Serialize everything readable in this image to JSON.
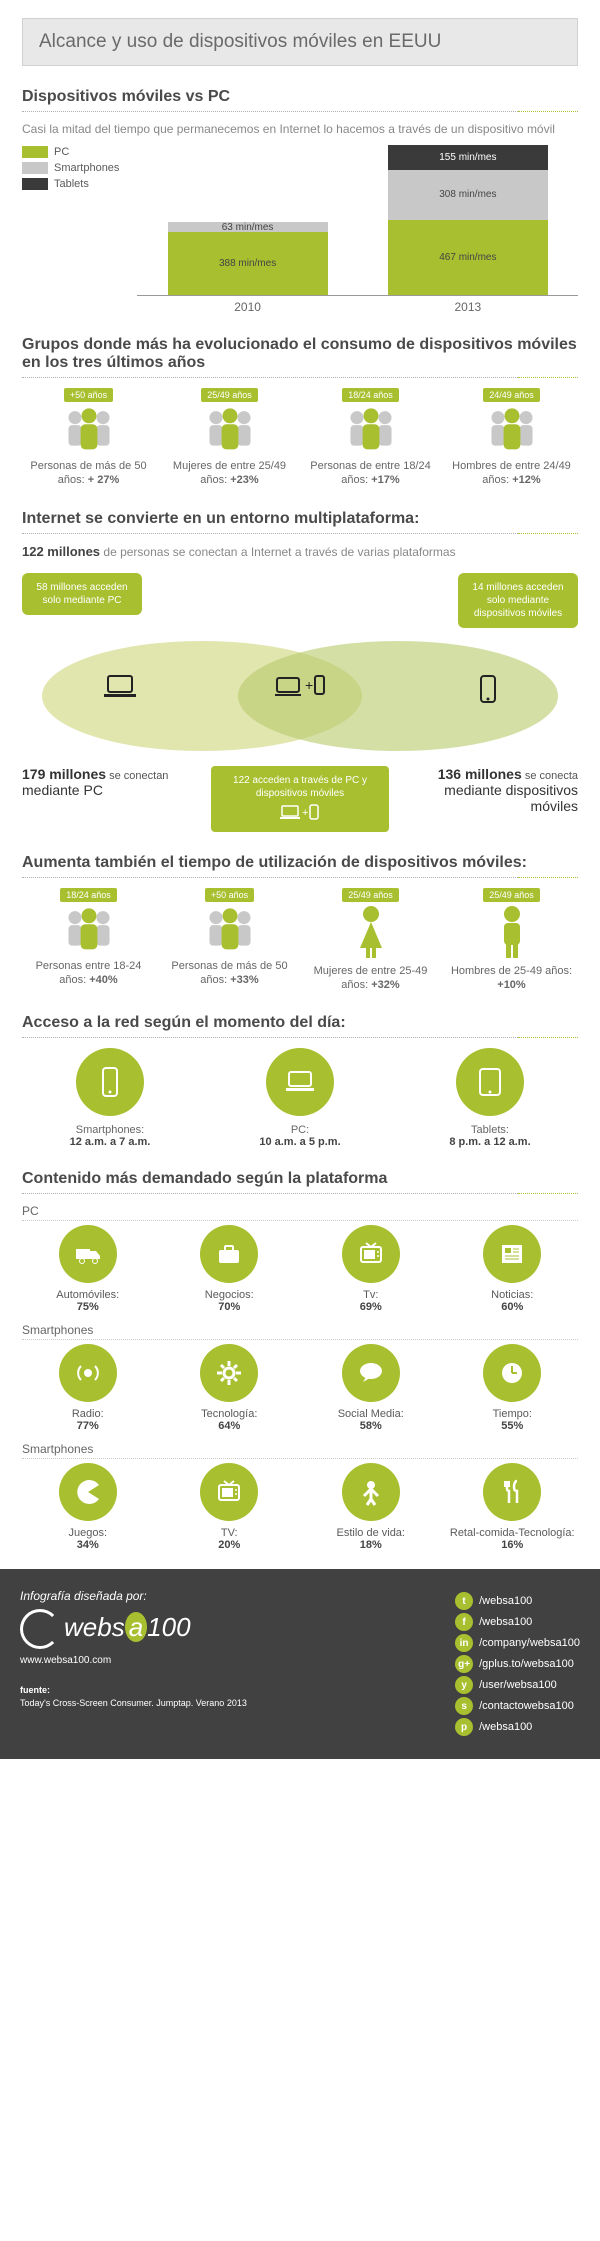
{
  "colors": {
    "accent": "#a8bf2f",
    "grey": "#c8c8c8",
    "dark": "#3a3a3a",
    "footer_bg": "#414141"
  },
  "title": "Alcance y uso de dispositivos móviles en EEUU",
  "s1": {
    "title": "Dispositivos móviles vs PC",
    "sub": "Casi la mitad del tiempo que permanecemos en Internet lo hacemos a través de un dispositivo móvil",
    "legend": [
      {
        "label": "PC",
        "color": "#a8bf2f"
      },
      {
        "label": "Smartphones",
        "color": "#c8c8c8"
      },
      {
        "label": "Tablets",
        "color": "#3a3a3a"
      }
    ],
    "chart": {
      "type": "stacked-bar",
      "unit": "min/mes",
      "max": 930,
      "years": [
        "2010",
        "2013"
      ],
      "stacks": [
        [
          {
            "v": 388,
            "label": "388 min/mes",
            "color": "#a8bf2f"
          },
          {
            "v": 63,
            "label": "63 min/mes",
            "color": "#c8c8c8"
          }
        ],
        [
          {
            "v": 467,
            "label": "467 min/mes",
            "color": "#a8bf2f"
          },
          {
            "v": 308,
            "label": "308 min/mes",
            "color": "#c8c8c8"
          },
          {
            "v": 155,
            "label": "155 min/mes",
            "color": "#3a3a3a",
            "light": true
          }
        ]
      ]
    }
  },
  "s2": {
    "title": "Grupos donde más ha evolucionado el consumo de dispositivos móviles en los tres últimos años",
    "items": [
      {
        "age": "+50 años",
        "icon": "group",
        "label": "Personas de más de 50 años:",
        "pct": "+ 27%"
      },
      {
        "age": "25/49 años",
        "icon": "group",
        "label": "Mujeres de entre 25/49 años:",
        "pct": "+23%"
      },
      {
        "age": "18/24 años",
        "icon": "group",
        "label": "Personas de entre 18/24 años:",
        "pct": "+17%"
      },
      {
        "age": "24/49 años",
        "icon": "group",
        "label": "Hombres de entre 24/49 años:",
        "pct": "+12%"
      }
    ]
  },
  "s3": {
    "title": "Internet se convierte en un entorno multiplataforma:",
    "stat_b": "122 millones",
    "stat_t": "de personas se conectan a Internet a través de varias plataformas",
    "bubble_left": "58 millones acceden solo mediante PC",
    "bubble_right": "14 millones acceden solo mediante dispositivos móviles",
    "venn_colors": {
      "left": "#cdd67a",
      "right": "#b8c96a"
    },
    "left_b": "179 millones",
    "left_t": "se conectan",
    "left_m": "mediante PC",
    "mid": "122 acceden a través de PC y dispositivos móviles",
    "right_b": "136 millones",
    "right_t": "se conecta",
    "right_m": "mediante dispositivos móviles"
  },
  "s4": {
    "title": "Aumenta también el tiempo de utilización de dispositivos móviles:",
    "items": [
      {
        "age": "18/24 años",
        "icon": "group",
        "label": "Personas entre 18-24 años:",
        "pct": "+40%"
      },
      {
        "age": "+50 años",
        "icon": "group",
        "label": "Personas de más de 50 años:",
        "pct": "+33%"
      },
      {
        "age": "25/49 años",
        "icon": "female",
        "label": "Mujeres de entre 25-49 años:",
        "pct": "+32%"
      },
      {
        "age": "25/49 años",
        "icon": "male",
        "label": "Hombres de 25-49 años:",
        "pct": "+10%"
      }
    ]
  },
  "s5": {
    "title": "Acceso a la red según el momento del día:",
    "items": [
      {
        "icon": "phone",
        "label": "Smartphones:",
        "val": "12 a.m. a 7 a.m."
      },
      {
        "icon": "laptop",
        "label": "PC:",
        "val": "10 a.m. a 5 p.m."
      },
      {
        "icon": "tablet",
        "label": "Tablets:",
        "val": "8 p.m. a 12 a.m."
      }
    ]
  },
  "s6": {
    "title": "Contenido más demandado según la plataforma",
    "groups": [
      {
        "name": "PC",
        "items": [
          {
            "icon": "truck",
            "label": "Automóviles:",
            "pct": "75%"
          },
          {
            "icon": "briefcase",
            "label": "Negocios:",
            "pct": "70%"
          },
          {
            "icon": "tv",
            "label": "Tv:",
            "pct": "69%"
          },
          {
            "icon": "news",
            "label": "Noticias:",
            "pct": "60%"
          }
        ]
      },
      {
        "name": "Smartphones",
        "items": [
          {
            "icon": "radio",
            "label": "Radio:",
            "pct": "77%"
          },
          {
            "icon": "gear",
            "label": "Tecnología:",
            "pct": "64%"
          },
          {
            "icon": "chat",
            "label": "Social Media:",
            "pct": "58%"
          },
          {
            "icon": "clock",
            "label": "Tiempo:",
            "pct": "55%"
          }
        ]
      },
      {
        "name": "Smartphones",
        "items": [
          {
            "icon": "pac",
            "label": "Juegos:",
            "pct": "34%"
          },
          {
            "icon": "tv",
            "label": "TV:",
            "pct": "20%"
          },
          {
            "icon": "person",
            "label": "Estilo de vida:",
            "pct": "18%"
          },
          {
            "icon": "fork",
            "label": "Retal-comida-Tecnología:",
            "pct": "16%"
          }
        ]
      }
    ]
  },
  "footer": {
    "design": "Infografía diseñada por:",
    "brand": "websa100",
    "url": "www.websa100.com",
    "source_label": "fuente:",
    "source": "Today's Cross-Screen Consumer. Jumptap. Verano 2013",
    "social": [
      {
        "i": "t",
        "t": "/websa100"
      },
      {
        "i": "f",
        "t": "/websa100"
      },
      {
        "i": "in",
        "t": "/company/websa100"
      },
      {
        "i": "g+",
        "t": "/gplus.to/websa100"
      },
      {
        "i": "y",
        "t": "/user/websa100"
      },
      {
        "i": "s",
        "t": "/contactowebsa100"
      },
      {
        "i": "p",
        "t": "/websa100"
      }
    ]
  }
}
